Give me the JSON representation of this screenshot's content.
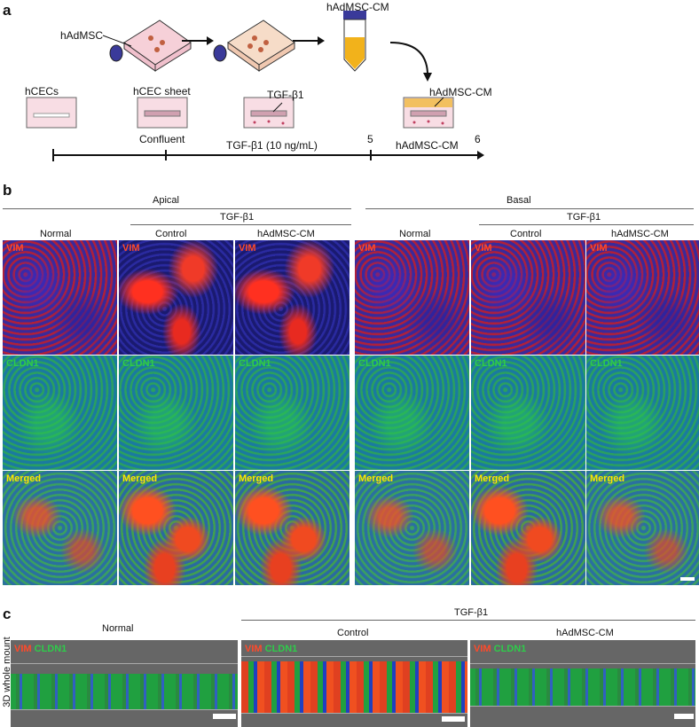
{
  "panel_a": {
    "label": "a",
    "hadmsc": "hAdMSC",
    "hadmsc_cm_top": "hAdMSC-CM",
    "hcecs": "hCECs",
    "hcec_sheet": "hCEC sheet",
    "tgf": "TGF-β1",
    "hadmsc_cm_well": "hAdMSC-CM",
    "confluent": "Confluent",
    "tgf_timeline": "TGF-β1 (10 ng/mL)",
    "t5": "5",
    "hadmsc_cm_timeline": "hAdMSC-CM",
    "t6": "6"
  },
  "panel_b": {
    "label": "b",
    "apical": "Apical",
    "basal": "Basal",
    "tgf_left": "TGF-β1",
    "tgf_right": "TGF-β1",
    "cols_left": [
      "Normal",
      "Control",
      "hAdMSC-CM"
    ],
    "cols_right": [
      "Normal",
      "Control",
      "hAdMSC-CM"
    ],
    "row_labels": [
      "VIM",
      "CLDN1",
      "Merged"
    ]
  },
  "panel_c": {
    "label": "c",
    "normal": "Normal",
    "tgf": "TGF-β1",
    "control": "Control",
    "hadmsc_cm": "hAdMSC-CM",
    "side_label": "3D whole mount",
    "vim": "VIM",
    "cldn1": "CLDN1"
  },
  "colors": {
    "vim": "#ff4a2a",
    "cldn1": "#2ecc4a",
    "merged": "#ffe600",
    "tube_medium": "#f2b21b",
    "cap": "#3a3a9a"
  }
}
